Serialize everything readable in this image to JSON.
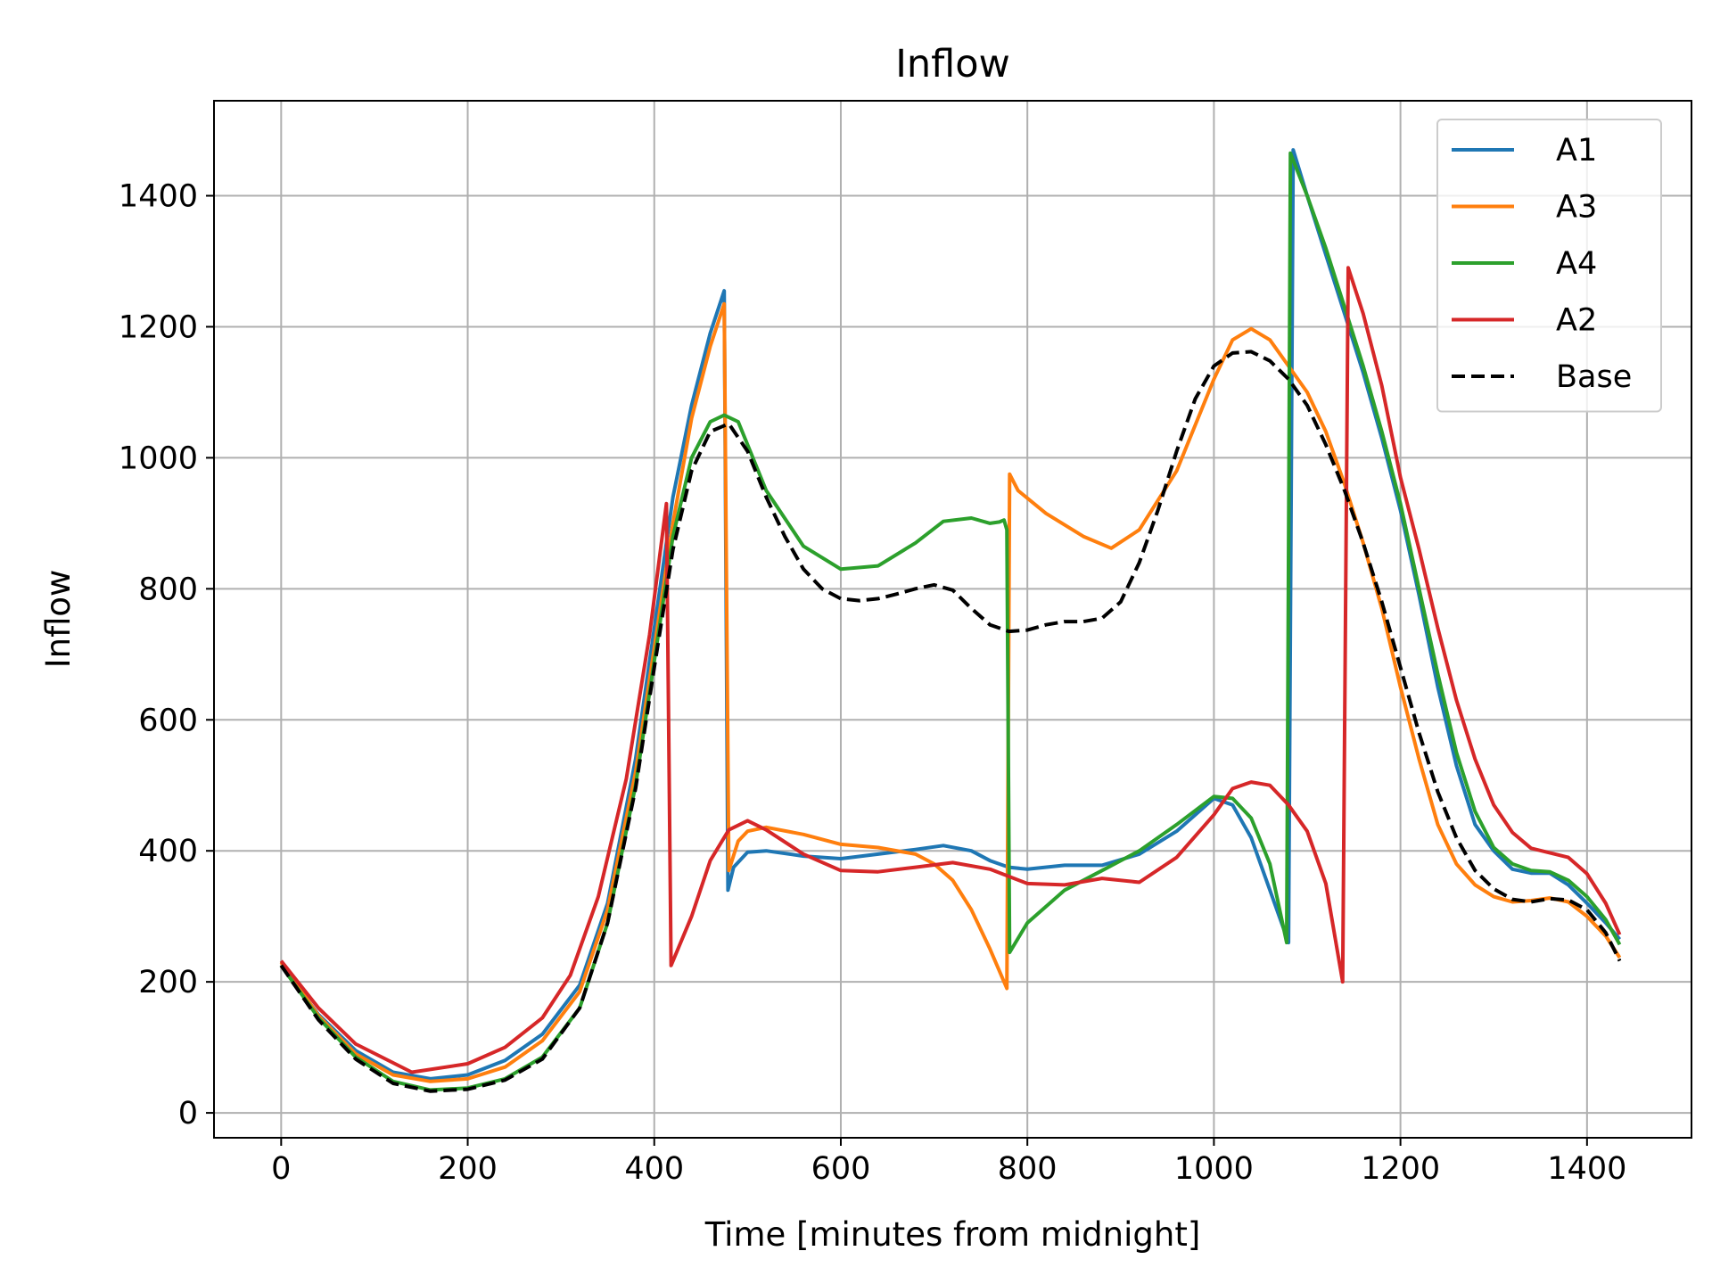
{
  "chart_data": {
    "type": "line",
    "title": "Inflow",
    "xlabel": "Time [minutes from midnight]",
    "ylabel": "Inflow",
    "xlim": [
      -72,
      1512
    ],
    "ylim": [
      -38,
      1545
    ],
    "xticks": [
      0,
      200,
      400,
      600,
      800,
      1000,
      1200,
      1400
    ],
    "yticks": [
      0,
      200,
      400,
      600,
      800,
      1000,
      1200,
      1400
    ],
    "grid": true,
    "legend_position": "top-right",
    "series": [
      {
        "name": "A1",
        "color": "#1f77b4",
        "dash": "solid",
        "x": [
          0,
          40,
          80,
          120,
          160,
          200,
          240,
          280,
          320,
          350,
          380,
          400,
          420,
          440,
          460,
          475,
          479,
          485,
          500,
          520,
          560,
          600,
          640,
          680,
          710,
          740,
          760,
          780,
          800,
          840,
          880,
          920,
          960,
          1000,
          1020,
          1040,
          1060,
          1080,
          1085,
          1100,
          1120,
          1140,
          1160,
          1180,
          1200,
          1220,
          1240,
          1260,
          1280,
          1300,
          1320,
          1340,
          1360,
          1380,
          1400,
          1420,
          1435
        ],
        "y": [
          225,
          150,
          95,
          62,
          52,
          58,
          80,
          120,
          195,
          320,
          540,
          740,
          940,
          1080,
          1190,
          1255,
          340,
          375,
          398,
          400,
          392,
          388,
          395,
          402,
          408,
          400,
          385,
          375,
          372,
          378,
          378,
          395,
          430,
          480,
          470,
          420,
          340,
          260,
          1470,
          1400,
          1310,
          1220,
          1130,
          1030,
          920,
          790,
          650,
          530,
          440,
          400,
          372,
          366,
          366,
          348,
          320,
          290,
          265
        ]
      },
      {
        "name": "A3",
        "color": "#ff7f0e",
        "dash": "solid",
        "x": [
          0,
          40,
          80,
          120,
          160,
          200,
          240,
          280,
          320,
          350,
          380,
          400,
          420,
          440,
          460,
          475,
          480,
          490,
          500,
          520,
          560,
          600,
          640,
          680,
          700,
          720,
          740,
          760,
          778,
          781,
          790,
          820,
          860,
          890,
          920,
          960,
          1000,
          1020,
          1040,
          1060,
          1080,
          1100,
          1120,
          1140,
          1160,
          1180,
          1200,
          1220,
          1240,
          1260,
          1280,
          1300,
          1320,
          1340,
          1360,
          1380,
          1400,
          1420,
          1435
        ],
        "y": [
          230,
          148,
          90,
          58,
          48,
          52,
          70,
          110,
          185,
          310,
          520,
          710,
          900,
          1060,
          1170,
          1235,
          370,
          415,
          430,
          436,
          425,
          410,
          405,
          395,
          380,
          355,
          310,
          250,
          190,
          975,
          950,
          915,
          880,
          862,
          890,
          980,
          1120,
          1180,
          1197,
          1180,
          1140,
          1100,
          1040,
          960,
          870,
          770,
          650,
          540,
          440,
          380,
          348,
          330,
          322,
          324,
          328,
          322,
          300,
          270,
          237
        ]
      },
      {
        "name": "A4",
        "color": "#2ca02c",
        "dash": "solid",
        "x": [
          0,
          40,
          80,
          120,
          160,
          200,
          240,
          280,
          320,
          350,
          380,
          400,
          420,
          440,
          460,
          475,
          490,
          500,
          520,
          560,
          600,
          640,
          680,
          710,
          740,
          760,
          770,
          775,
          778,
          781,
          800,
          840,
          880,
          920,
          960,
          1000,
          1020,
          1040,
          1060,
          1078,
          1082,
          1100,
          1120,
          1140,
          1160,
          1180,
          1200,
          1220,
          1240,
          1260,
          1280,
          1300,
          1320,
          1340,
          1360,
          1380,
          1400,
          1420,
          1435
        ],
        "y": [
          225,
          145,
          85,
          48,
          35,
          38,
          52,
          85,
          160,
          290,
          500,
          690,
          880,
          1000,
          1055,
          1065,
          1055,
          1020,
          950,
          865,
          830,
          835,
          870,
          903,
          908,
          900,
          902,
          905,
          890,
          245,
          290,
          340,
          370,
          400,
          440,
          483,
          480,
          450,
          380,
          260,
          1465,
          1400,
          1320,
          1230,
          1140,
          1040,
          930,
          800,
          670,
          550,
          460,
          405,
          380,
          370,
          368,
          355,
          330,
          295,
          257
        ]
      },
      {
        "name": "A2",
        "color": "#d62728",
        "dash": "solid",
        "x": [
          0,
          40,
          80,
          140,
          200,
          240,
          280,
          310,
          340,
          370,
          395,
          413,
          418,
          440,
          460,
          480,
          500,
          520,
          560,
          600,
          640,
          680,
          720,
          760,
          800,
          840,
          880,
          920,
          960,
          1000,
          1020,
          1040,
          1060,
          1080,
          1100,
          1120,
          1138,
          1144,
          1160,
          1180,
          1200,
          1220,
          1240,
          1260,
          1280,
          1300,
          1320,
          1340,
          1360,
          1380,
          1400,
          1420,
          1435
        ],
        "y": [
          232,
          160,
          105,
          62,
          75,
          100,
          145,
          210,
          330,
          510,
          730,
          930,
          225,
          300,
          385,
          432,
          446,
          432,
          395,
          370,
          368,
          375,
          382,
          372,
          350,
          348,
          358,
          352,
          390,
          455,
          495,
          505,
          500,
          470,
          430,
          350,
          200,
          1290,
          1220,
          1110,
          970,
          860,
          740,
          630,
          540,
          470,
          428,
          404,
          397,
          390,
          365,
          320,
          272
        ]
      },
      {
        "name": "Base",
        "color": "#000000",
        "dash": "dashed",
        "x": [
          0,
          40,
          80,
          120,
          160,
          200,
          240,
          280,
          320,
          350,
          380,
          400,
          420,
          440,
          460,
          480,
          500,
          520,
          540,
          560,
          580,
          600,
          620,
          640,
          660,
          680,
          700,
          720,
          740,
          760,
          780,
          800,
          820,
          840,
          860,
          880,
          900,
          920,
          940,
          960,
          980,
          1000,
          1020,
          1040,
          1060,
          1080,
          1100,
          1120,
          1140,
          1160,
          1180,
          1200,
          1220,
          1240,
          1260,
          1280,
          1300,
          1320,
          1340,
          1360,
          1380,
          1400,
          1420,
          1435
        ],
        "y": [
          225,
          142,
          82,
          45,
          33,
          36,
          50,
          82,
          160,
          290,
          495,
          680,
          860,
          980,
          1040,
          1052,
          1010,
          940,
          880,
          830,
          800,
          785,
          782,
          785,
          792,
          800,
          806,
          798,
          770,
          745,
          735,
          737,
          745,
          750,
          750,
          755,
          780,
          840,
          920,
          1010,
          1090,
          1140,
          1160,
          1162,
          1148,
          1120,
          1080,
          1020,
          950,
          870,
          780,
          680,
          580,
          490,
          420,
          370,
          342,
          326,
          322,
          327,
          325,
          310,
          275,
          232
        ]
      }
    ]
  }
}
